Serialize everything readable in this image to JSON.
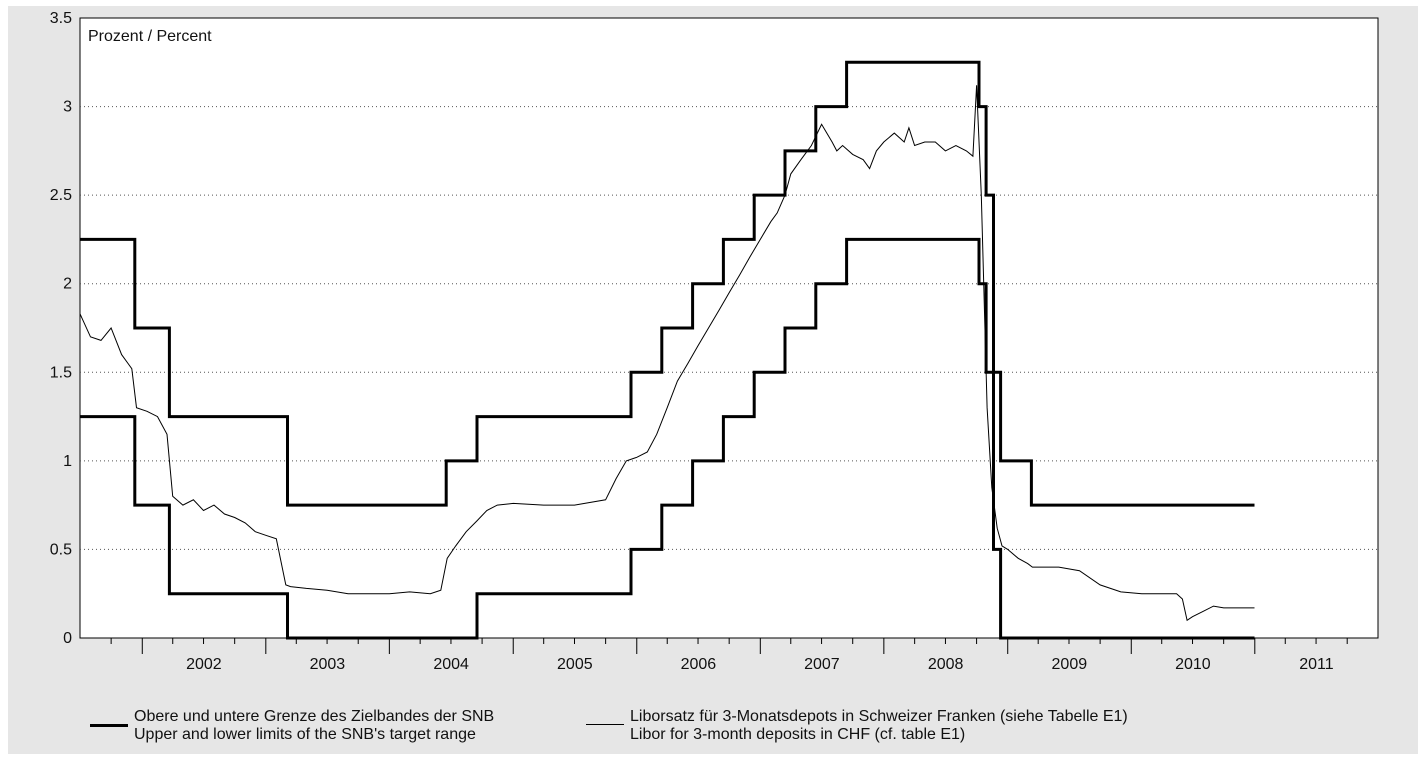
{
  "chart_data": {
    "type": "line",
    "ylabel": "Prozent / Percent",
    "ylim": [
      0,
      3.5
    ],
    "yticks": [
      "0",
      "0.5",
      "1",
      "1.5",
      "2",
      "2.5",
      "3",
      "3.5"
    ],
    "xlim": [
      "2001-07-01",
      "2011-12-31"
    ],
    "xtick_labels": [
      "2002",
      "2003",
      "2004",
      "2005",
      "2006",
      "2007",
      "2008",
      "2009",
      "2010",
      "2011"
    ],
    "grid": "horizontal dotted",
    "series": [
      {
        "name": "Obere und untere Grenze des Zielbandes der SNB / Upper and lower limits of the SNB's target range",
        "style": "thick step",
        "upper": {
          "x": [
            "2001-07-01",
            "2001-12-10",
            "2002-03-22",
            "2002-07-26",
            "2003-03-06",
            "2004-06-17",
            "2004-09-16",
            "2005-12-15",
            "2006-03-16",
            "2006-06-15",
            "2006-09-14",
            "2006-12-14",
            "2007-03-15",
            "2007-06-14",
            "2007-09-13",
            "2008-10-08",
            "2008-10-29",
            "2008-11-20",
            "2008-12-11",
            "2009-03-12",
            "2010-12-31"
          ],
          "y": [
            2.25,
            1.75,
            1.25,
            1.25,
            0.75,
            1.0,
            1.25,
            1.5,
            1.75,
            2.0,
            2.25,
            2.5,
            2.75,
            3.0,
            3.25,
            3.0,
            2.5,
            1.5,
            1.0,
            0.75,
            0.75
          ]
        },
        "lower": {
          "x": [
            "2001-07-01",
            "2001-12-10",
            "2002-03-22",
            "2002-07-26",
            "2003-03-06",
            "2004-06-17",
            "2004-09-16",
            "2005-12-15",
            "2006-03-16",
            "2006-06-15",
            "2006-09-14",
            "2006-12-14",
            "2007-03-15",
            "2007-06-14",
            "2007-09-13",
            "2008-10-08",
            "2008-10-29",
            "2008-11-20",
            "2008-12-11",
            "2009-03-12",
            "2010-12-31"
          ],
          "y": [
            1.25,
            0.75,
            0.25,
            0.25,
            0.0,
            0.0,
            0.25,
            0.5,
            0.75,
            1.0,
            1.25,
            1.5,
            1.75,
            2.0,
            2.25,
            2.0,
            1.5,
            0.5,
            0.0,
            0.0,
            0.0
          ]
        }
      },
      {
        "name": "Liborsatz für 3-Monatsdepots in Schweizer Franken (siehe Tabelle E1) / Libor for 3-month deposits in CHF (cf. table E1)",
        "style": "thin line",
        "x": [
          "2001-07-01",
          "2001-08-01",
          "2001-09-01",
          "2001-10-01",
          "2001-11-01",
          "2001-12-01",
          "2001-12-15",
          "2002-01-15",
          "2002-02-15",
          "2002-03-15",
          "2002-04-01",
          "2002-05-01",
          "2002-06-01",
          "2002-07-01",
          "2002-08-01",
          "2002-09-01",
          "2002-10-01",
          "2002-11-01",
          "2002-12-01",
          "2003-01-01",
          "2003-02-01",
          "2003-03-01",
          "2003-03-15",
          "2003-05-01",
          "2003-07-01",
          "2003-09-01",
          "2003-11-01",
          "2004-01-01",
          "2004-03-01",
          "2004-05-01",
          "2004-06-01",
          "2004-06-20",
          "2004-07-15",
          "2004-08-15",
          "2004-09-15",
          "2004-10-15",
          "2004-11-15",
          "2005-01-01",
          "2005-04-01",
          "2005-07-01",
          "2005-10-01",
          "2005-11-01",
          "2005-12-01",
          "2006-01-01",
          "2006-02-01",
          "2006-03-01",
          "2006-04-01",
          "2006-05-01",
          "2006-06-01",
          "2006-07-01",
          "2006-08-01",
          "2006-09-01",
          "2006-10-01",
          "2006-11-01",
          "2006-12-01",
          "2007-01-01",
          "2007-02-01",
          "2007-02-20",
          "2007-03-15",
          "2007-04-01",
          "2007-05-01",
          "2007-06-01",
          "2007-07-01",
          "2007-08-01",
          "2007-08-15",
          "2007-09-01",
          "2007-10-01",
          "2007-11-01",
          "2007-11-20",
          "2007-12-10",
          "2008-01-01",
          "2008-02-01",
          "2008-03-01",
          "2008-03-15",
          "2008-04-01",
          "2008-05-01",
          "2008-06-01",
          "2008-07-01",
          "2008-08-01",
          "2008-09-01",
          "2008-09-20",
          "2008-10-01",
          "2008-10-15",
          "2008-11-01",
          "2008-11-15",
          "2008-12-01",
          "2008-12-15",
          "2009-01-01",
          "2009-02-01",
          "2009-03-01",
          "2009-03-15",
          "2009-04-01",
          "2009-06-01",
          "2009-08-01",
          "2009-10-01",
          "2009-12-01",
          "2010-02-01",
          "2010-04-01",
          "2010-05-15",
          "2010-06-01",
          "2010-06-15",
          "2010-07-01",
          "2010-08-01",
          "2010-09-01",
          "2010-10-01",
          "2010-12-31"
        ],
        "y": [
          1.83,
          1.7,
          1.68,
          1.75,
          1.6,
          1.52,
          1.3,
          1.28,
          1.25,
          1.15,
          0.8,
          0.75,
          0.78,
          0.72,
          0.75,
          0.7,
          0.68,
          0.65,
          0.6,
          0.58,
          0.56,
          0.3,
          0.29,
          0.28,
          0.27,
          0.25,
          0.25,
          0.25,
          0.26,
          0.25,
          0.27,
          0.45,
          0.52,
          0.6,
          0.66,
          0.72,
          0.75,
          0.76,
          0.75,
          0.75,
          0.78,
          0.9,
          1.0,
          1.02,
          1.05,
          1.15,
          1.3,
          1.45,
          1.55,
          1.65,
          1.75,
          1.85,
          1.95,
          2.05,
          2.15,
          2.25,
          2.35,
          2.4,
          2.5,
          2.62,
          2.7,
          2.78,
          2.9,
          2.8,
          2.75,
          2.78,
          2.73,
          2.7,
          2.65,
          2.75,
          2.8,
          2.85,
          2.8,
          2.88,
          2.78,
          2.8,
          2.8,
          2.75,
          2.78,
          2.75,
          2.72,
          3.12,
          2.5,
          1.3,
          0.85,
          0.62,
          0.52,
          0.5,
          0.45,
          0.42,
          0.4,
          0.4,
          0.4,
          0.38,
          0.3,
          0.26,
          0.25,
          0.25,
          0.25,
          0.22,
          0.1,
          0.12,
          0.15,
          0.18,
          0.17,
          0.17
        ]
      }
    ]
  },
  "legend": {
    "band_line1": "Obere und untere Grenze des Zielbandes der SNB",
    "band_line2": "Upper and lower limits of the SNB's target range",
    "libor_line1": "Liborsatz für 3-Monatsdepots in Schweizer Franken (siehe Tabelle E1)",
    "libor_line2": "Libor for 3-month deposits in CHF (cf. table E1)"
  }
}
